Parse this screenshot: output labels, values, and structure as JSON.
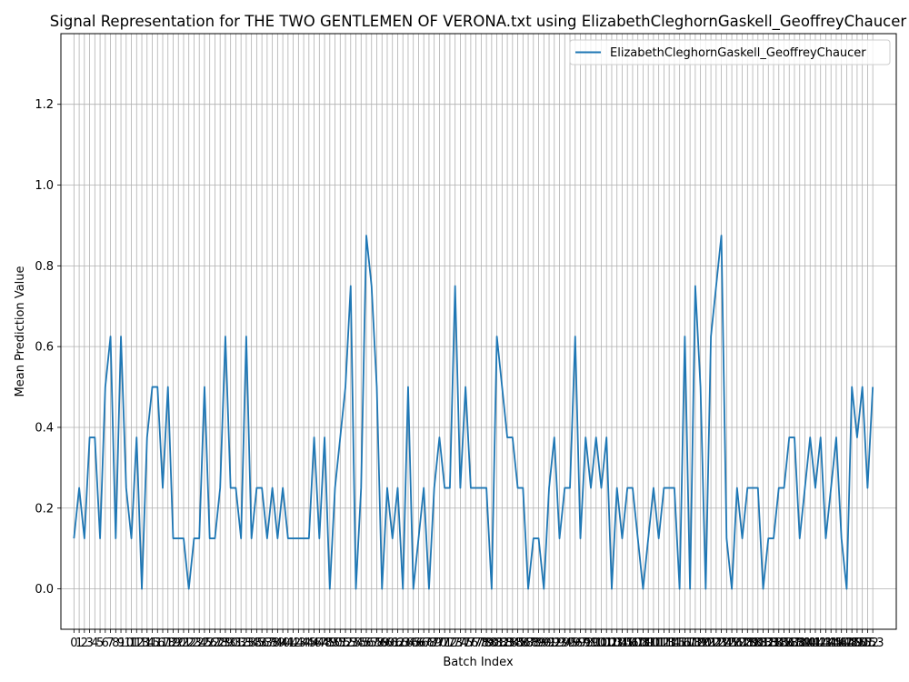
{
  "chart_data": {
    "type": "line",
    "title": "Signal Representation for THE TWO GENTLEMEN OF VERONA.txt using ElizabethCleghornGaskell_GeoffreyChaucer",
    "xlabel": "Batch Index",
    "ylabel": "Mean Prediction Value",
    "xlim": [
      -2.5,
      157.5
    ],
    "ylim": [
      -0.1,
      1.375
    ],
    "yticks": [
      0.0,
      0.2,
      0.4,
      0.6,
      0.8,
      1.0,
      1.2
    ],
    "ytick_labels": [
      "0.0",
      "0.2",
      "0.4",
      "0.6",
      "0.8",
      "1.0",
      "1.2"
    ],
    "grid": true,
    "legend_position": "top-right",
    "colors": {
      "series": "#1f77b4",
      "grid": "#b0b0b0"
    },
    "series": [
      {
        "name": "ElizabethCleghornGaskell_GeoffreyChaucer",
        "x": [
          0,
          1,
          2,
          3,
          4,
          5,
          6,
          7,
          8,
          9,
          10,
          11,
          12,
          13,
          14,
          15,
          16,
          17,
          18,
          19,
          20,
          21,
          22,
          23,
          24,
          25,
          26,
          27,
          28,
          29,
          30,
          31,
          32,
          33,
          34,
          35,
          36,
          37,
          38,
          39,
          40,
          41,
          42,
          43,
          44,
          45,
          46,
          47,
          48,
          49,
          50,
          51,
          52,
          53,
          54,
          55,
          56,
          57,
          58,
          59,
          60,
          61,
          62,
          63,
          64,
          65,
          66,
          67,
          68,
          69,
          70,
          71,
          72,
          73,
          74,
          75,
          76,
          77,
          78,
          79,
          80,
          81,
          82,
          83,
          84,
          85,
          86,
          87,
          88,
          89,
          90,
          91,
          92,
          93,
          94,
          95,
          96,
          97,
          98,
          99,
          100,
          101,
          102,
          103,
          104,
          105,
          106,
          107,
          108,
          109,
          110,
          111,
          112,
          113,
          114,
          115,
          116,
          117,
          118,
          119,
          120,
          121,
          122,
          123,
          124,
          125,
          126,
          127,
          128,
          129,
          130,
          131,
          132,
          133,
          134,
          135,
          136,
          137,
          138,
          139,
          140,
          141,
          142,
          143,
          144,
          145,
          146,
          147,
          148,
          149,
          150,
          151,
          152,
          153
        ],
        "values": [
          0.125,
          0.25,
          0.125,
          0.375,
          0.375,
          0.125,
          0.5,
          0.625,
          0.125,
          0.625,
          0.25,
          0.125,
          0.375,
          0.0,
          0.375,
          0.5,
          0.5,
          0.25,
          0.5,
          0.125,
          0.125,
          0.125,
          0.0,
          0.125,
          0.125,
          0.5,
          0.125,
          0.125,
          0.25,
          0.625,
          0.25,
          0.25,
          0.125,
          0.625,
          0.125,
          0.25,
          0.25,
          0.125,
          0.25,
          0.125,
          0.25,
          0.125,
          0.125,
          0.125,
          0.125,
          0.125,
          0.375,
          0.125,
          0.375,
          0.0,
          0.25,
          0.375,
          0.5,
          0.75,
          0.0,
          0.25,
          0.875,
          0.75,
          0.5,
          0.0,
          0.25,
          0.125,
          0.25,
          0.0,
          0.5,
          0.0,
          0.125,
          0.25,
          0.0,
          0.25,
          0.375,
          0.25,
          0.25,
          0.75,
          0.25,
          0.5,
          0.25,
          0.25,
          0.25,
          0.25,
          0.0,
          0.625,
          0.5,
          0.375,
          0.375,
          0.25,
          0.25,
          0.0,
          0.125,
          0.125,
          0.0,
          0.25,
          0.375,
          0.125,
          0.25,
          0.25,
          0.625,
          0.125,
          0.375,
          0.25,
          0.375,
          0.25,
          0.375,
          0.0,
          0.25,
          0.125,
          0.25,
          0.25,
          0.125,
          0.0,
          0.125,
          0.25,
          0.125,
          0.25,
          0.25,
          0.25,
          0.0,
          0.625,
          0.0,
          0.75,
          0.5,
          0.0,
          0.625,
          0.75,
          0.875,
          0.125,
          0.0,
          0.25,
          0.125,
          0.25,
          0.25,
          0.25,
          0.0,
          0.125,
          0.125,
          0.25,
          0.25,
          0.375,
          0.375,
          0.125,
          0.25,
          0.375,
          0.25,
          0.375,
          0.125,
          0.25,
          0.375,
          0.125,
          0.0,
          0.5,
          0.375,
          0.5,
          0.25,
          0.5
        ]
      }
    ]
  }
}
